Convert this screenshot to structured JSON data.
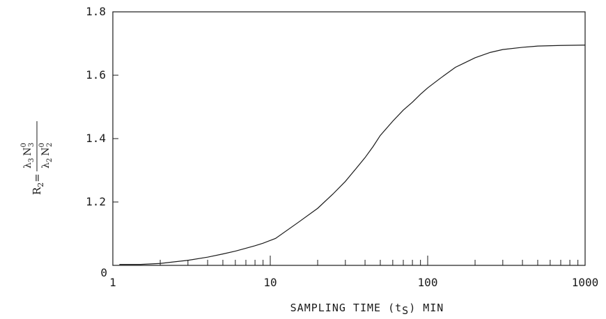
{
  "chart_data": {
    "type": "line",
    "xscale": "log",
    "xlim": [
      1,
      1000
    ],
    "ylim": [
      1.0,
      1.8
    ],
    "grid": false,
    "legend": "none",
    "xlabel": "SAMPLING TIME (t",
    "xlabel_sub": "S",
    "xlabel_tail": ") MIN",
    "ylabel": {
      "lhs": "R",
      "lhs_sub": "2",
      "eq": "=",
      "num_lambda": "λ",
      "num_lambda_sub": "3",
      "num_N": "N",
      "num_N_sub": "3",
      "num_N_sup": "0",
      "den_lambda": "λ",
      "den_lambda_sub": "2",
      "den_N": "N",
      "den_N_sub": "2",
      "den_N_sup": "0"
    },
    "xticks": [
      {
        "value": 1,
        "label": "1"
      },
      {
        "value": 10,
        "label": "10"
      },
      {
        "value": 100,
        "label": "100"
      },
      {
        "value": 1000,
        "label": "1000"
      }
    ],
    "yticks": [
      {
        "value": 1.0,
        "label": "0"
      },
      {
        "value": 1.2,
        "label": "1.2"
      },
      {
        "value": 1.4,
        "label": "1.4"
      },
      {
        "value": 1.6,
        "label": "1.6"
      },
      {
        "value": 1.8,
        "label": "1.8"
      }
    ],
    "series": [
      {
        "x": [
          1.1,
          1.5,
          2,
          3,
          4,
          5,
          6,
          7,
          8,
          9,
          10.8,
          15,
          20,
          25,
          30,
          35,
          40,
          45,
          50,
          60,
          70,
          80,
          90,
          100,
          120,
          150,
          170,
          200,
          250,
          300,
          400,
          500,
          700,
          1000
        ],
        "y": [
          1.003,
          1.003,
          1.006,
          1.016,
          1.026,
          1.036,
          1.045,
          1.054,
          1.062,
          1.07,
          1.085,
          1.135,
          1.18,
          1.225,
          1.265,
          1.305,
          1.34,
          1.375,
          1.41,
          1.455,
          1.49,
          1.515,
          1.54,
          1.56,
          1.59,
          1.625,
          1.638,
          1.655,
          1.672,
          1.681,
          1.688,
          1.692,
          1.694,
          1.695
        ]
      }
    ]
  }
}
